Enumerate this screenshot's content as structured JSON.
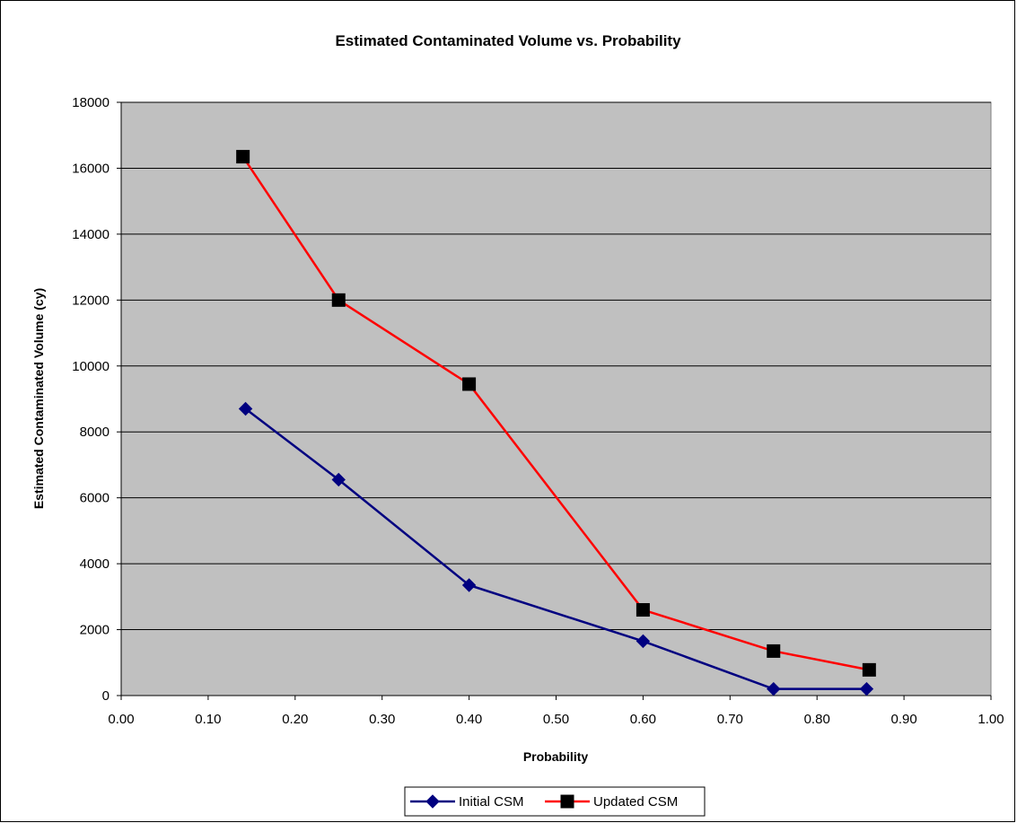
{
  "chart_data": {
    "type": "line",
    "title": "Estimated Contaminated Volume vs. Probability",
    "xlabel": "Probability",
    "ylabel": "Estimated Contaminated Volume (cy)",
    "xlim": [
      0,
      1
    ],
    "ylim": [
      0,
      18000
    ],
    "x_ticks": [
      0,
      0.1,
      0.2,
      0.3,
      0.4,
      0.5,
      0.6,
      0.7,
      0.8,
      0.9,
      1.0
    ],
    "x_tick_labels": [
      "0.00",
      "0.10",
      "0.20",
      "0.30",
      "0.40",
      "0.50",
      "0.60",
      "0.70",
      "0.80",
      "0.90",
      "1.00"
    ],
    "y_ticks": [
      0,
      2000,
      4000,
      6000,
      8000,
      10000,
      12000,
      14000,
      16000,
      18000
    ],
    "y_tick_labels": [
      "0",
      "2000",
      "4000",
      "6000",
      "8000",
      "10000",
      "12000",
      "14000",
      "16000",
      "18000"
    ],
    "grid": "horizontal",
    "legend_position": "bottom",
    "plot_background": "#c0c0c0",
    "series": [
      {
        "name": "Initial CSM",
        "color": "#000080",
        "marker": "diamond",
        "x": [
          0.143,
          0.25,
          0.4,
          0.6,
          0.75,
          0.857
        ],
        "y": [
          8700,
          6550,
          3350,
          1650,
          200,
          200
        ]
      },
      {
        "name": "Updated CSM",
        "color": "#ff0000",
        "marker_color": "#000000",
        "marker": "square",
        "x": [
          0.14,
          0.25,
          0.4,
          0.6,
          0.75,
          0.86
        ],
        "y": [
          16350,
          12000,
          9450,
          2600,
          1350,
          780
        ]
      }
    ]
  }
}
